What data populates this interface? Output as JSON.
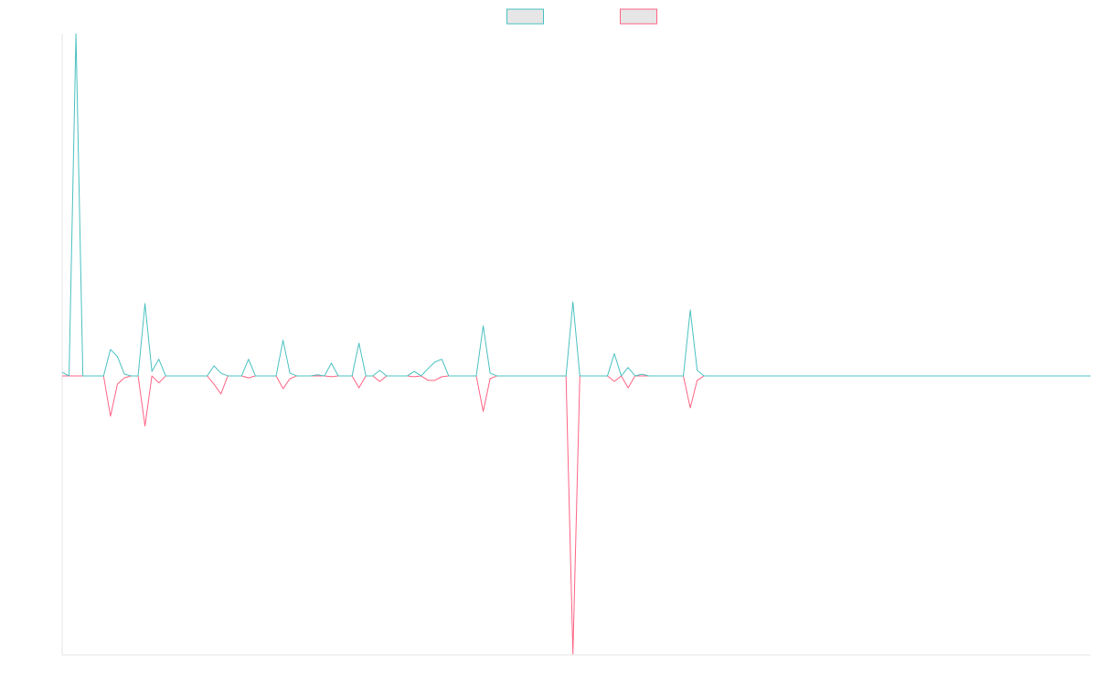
{
  "chart_data": {
    "type": "line",
    "legend": "top",
    "ylim": [
      -100,
      123
    ],
    "xlim": [
      0,
      149
    ],
    "series": [
      {
        "color": "#4bc0c0",
        "values": [
          1.3,
          0,
          123,
          0,
          0,
          0,
          0,
          9.5,
          7,
          0.7,
          0,
          0,
          26,
          1.6,
          6,
          0,
          0,
          0,
          0,
          0,
          0,
          0,
          3.6,
          1,
          0,
          0,
          0,
          6,
          0,
          0,
          0,
          0,
          12.8,
          1,
          0,
          0,
          0,
          0.4,
          0,
          4.6,
          0,
          0,
          0,
          11.8,
          0,
          0,
          2,
          0,
          0,
          0,
          0,
          1.6,
          0,
          2.6,
          5,
          6,
          0,
          0,
          0,
          0,
          0,
          18,
          1,
          0,
          0,
          0,
          0,
          0,
          0,
          0,
          0,
          0,
          0,
          0,
          26.6,
          0,
          0,
          0,
          0,
          0,
          8,
          0,
          3,
          0,
          0.6,
          0,
          0,
          0,
          0,
          0,
          0,
          23.7,
          2,
          0,
          0,
          0,
          0,
          0,
          0,
          0,
          0,
          0,
          0,
          0,
          0,
          0,
          0,
          0,
          0,
          0,
          0,
          0,
          0,
          0,
          0,
          0,
          0,
          0,
          0,
          0,
          0,
          0,
          0,
          0,
          0,
          0,
          0,
          0,
          0,
          0,
          0,
          0,
          0,
          0,
          0,
          0,
          0,
          0,
          0,
          0,
          0,
          0,
          0,
          0,
          0,
          0,
          0,
          0,
          0,
          0
        ]
      },
      {
        "color": "#ff6384",
        "values": [
          0,
          0,
          0,
          0,
          0,
          0,
          0,
          -14.5,
          -3,
          -0.7,
          0,
          0,
          -18,
          0,
          -2.5,
          0,
          0,
          0,
          0,
          0,
          0,
          0,
          -3,
          -6.5,
          0,
          0,
          0,
          -0.7,
          0,
          0,
          0,
          0,
          -4.6,
          -1,
          0,
          0,
          0,
          0,
          0,
          -0.3,
          0,
          0,
          0,
          -4.3,
          0,
          0,
          -2,
          0,
          0,
          0,
          0,
          -0.3,
          0,
          -1.6,
          -1.6,
          -0.3,
          0,
          0,
          0,
          0,
          0,
          -12.8,
          -1,
          0,
          0,
          0,
          0,
          0,
          0,
          0,
          0,
          0,
          0,
          0,
          -100,
          0,
          0,
          0,
          0,
          0,
          -2,
          0,
          -4.3,
          0,
          0,
          0,
          0,
          0,
          0,
          0,
          0,
          -11.5,
          -1.6,
          0,
          0,
          0,
          0,
          0,
          0,
          0,
          0,
          0,
          0,
          0,
          0,
          0,
          0,
          0,
          0,
          0,
          0,
          0,
          0,
          0,
          0,
          0,
          0,
          0,
          0,
          0,
          0,
          0,
          0,
          0,
          0,
          0,
          0,
          0,
          0,
          0,
          0,
          0,
          0,
          0,
          0,
          0,
          0,
          0,
          0,
          0,
          0,
          0,
          0,
          0,
          0,
          0,
          0,
          0,
          0,
          0
        ]
      }
    ]
  }
}
